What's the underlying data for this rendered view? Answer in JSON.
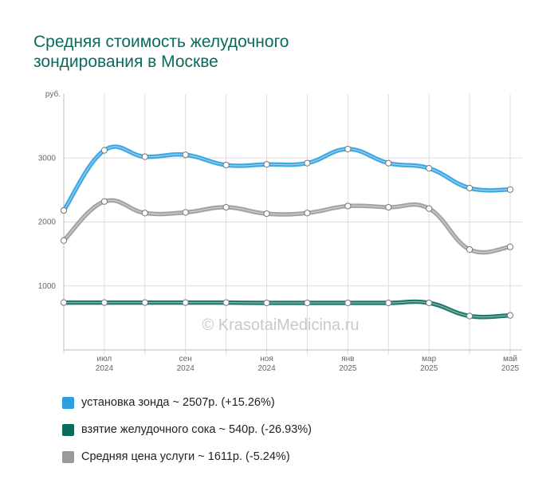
{
  "title": "Средняя стоимость желудочного зондирования в Москве",
  "watermark": "© KrasotaiMedicina.ru",
  "legend": [
    {
      "text": "установка зонда ~ 2507р. (+15.26%)",
      "color": "#2b9fe0"
    },
    {
      "text": "взятие желудочного сока ~ 540р. (-26.93%)",
      "color": "#0a6b5c"
    },
    {
      "text": "Средняя цена услуги ~ 1611р. (-5.24%)",
      "color": "#9a9a9a"
    }
  ],
  "chart_data": {
    "type": "line",
    "y_unit_label": "руб.",
    "ylim": [
      0,
      4000
    ],
    "y_ticks": [
      1000,
      2000,
      3000
    ],
    "x_tick_labels": [
      {
        "index": 1,
        "month": "июл",
        "year": "2024"
      },
      {
        "index": 3,
        "month": "сен",
        "year": "2024"
      },
      {
        "index": 5,
        "month": "ноя",
        "year": "2024"
      },
      {
        "index": 7,
        "month": "янв",
        "year": "2025"
      },
      {
        "index": 9,
        "month": "мар",
        "year": "2025"
      },
      {
        "index": 11,
        "month": "май",
        "year": "2025"
      }
    ],
    "x": [
      "2024-06",
      "2024-07",
      "2024-08",
      "2024-09",
      "2024-10",
      "2024-11",
      "2024-12",
      "2025-01",
      "2025-02",
      "2025-03",
      "2025-04",
      "2025-05"
    ],
    "grid": true,
    "series": [
      {
        "name": "установка зонда",
        "color": "#2b9fe0",
        "values": [
          2180,
          3120,
          3020,
          3050,
          2890,
          2900,
          2920,
          3140,
          2920,
          2840,
          2530,
          2507
        ]
      },
      {
        "name": "Средняя цена услуги",
        "color": "#9a9a9a",
        "values": [
          1710,
          2320,
          2140,
          2150,
          2230,
          2130,
          2140,
          2250,
          2230,
          2210,
          1570,
          1611
        ]
      },
      {
        "name": "взятие желудочного сока",
        "color": "#0a6b5c",
        "values": [
          740,
          740,
          740,
          740,
          740,
          735,
          735,
          735,
          735,
          735,
          530,
          540
        ]
      }
    ]
  }
}
